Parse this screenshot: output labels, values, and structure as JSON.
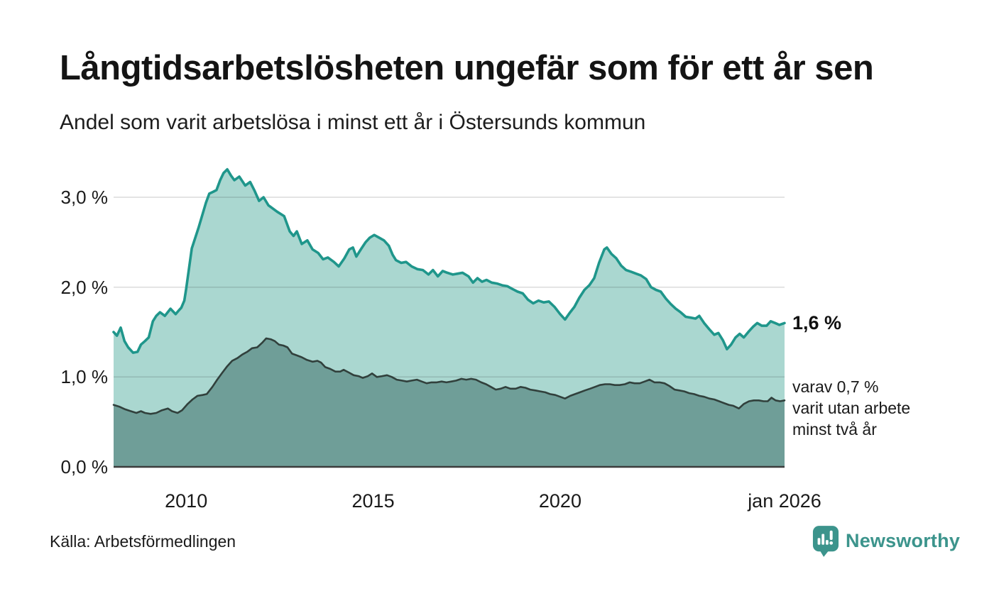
{
  "header": {
    "title": "Långtidsarbetslösheten ungefär som för ett år sen",
    "subtitle": "Andel som varit arbetslösa i minst ett år i Östersunds kommun"
  },
  "chart_data": {
    "type": "area",
    "title": "Långtidsarbetslösheten ungefär som för ett år sen",
    "subtitle": "Andel som varit arbetslösa i minst ett år i Östersunds kommun",
    "x_domain": [
      2008.06,
      2026.0
    ],
    "ylim": [
      0,
      3.5
    ],
    "grid": true,
    "legend_position": "none",
    "colors": {
      "line_total": "#1F968B",
      "fill_total": "#AAD7D0",
      "line_two_years": "#31403C",
      "fill_two_years": "#6F9E98",
      "gridline": "rgba(30,30,30,0.16)",
      "baseline": "#3C3C3C",
      "brand_teal": "#3C948C"
    },
    "y_axis": {
      "ticks": [
        {
          "label": "0,0 %",
          "value": 0
        },
        {
          "label": "1,0 %",
          "value": 1
        },
        {
          "label": "2,0 %",
          "value": 2
        },
        {
          "label": "3,0 %",
          "value": 3
        }
      ]
    },
    "x_axis": {
      "ticks": [
        {
          "label": "2010",
          "value": 2010
        },
        {
          "label": "2015",
          "value": 2015
        },
        {
          "label": "2020",
          "value": 2020
        },
        {
          "label": "jan 2026",
          "value": 2026
        }
      ]
    },
    "series": [
      {
        "name": "Andel arbetslösa minst ett år",
        "line_color": "#1F968B",
        "fill_color": "#AAD7D0",
        "latest_value": 1.6,
        "points": [
          [
            2008.06,
            1.5
          ],
          [
            2008.15,
            1.46
          ],
          [
            2008.25,
            1.55
          ],
          [
            2008.35,
            1.4
          ],
          [
            2008.45,
            1.33
          ],
          [
            2008.58,
            1.27
          ],
          [
            2008.7,
            1.28
          ],
          [
            2008.79,
            1.36
          ],
          [
            2008.9,
            1.4
          ],
          [
            2009.0,
            1.44
          ],
          [
            2009.11,
            1.62
          ],
          [
            2009.2,
            1.68
          ],
          [
            2009.3,
            1.72
          ],
          [
            2009.43,
            1.68
          ],
          [
            2009.58,
            1.76
          ],
          [
            2009.72,
            1.7
          ],
          [
            2009.8,
            1.74
          ],
          [
            2009.87,
            1.77
          ],
          [
            2009.95,
            1.85
          ],
          [
            2010.0,
            1.98
          ],
          [
            2010.15,
            2.43
          ],
          [
            2010.33,
            2.66
          ],
          [
            2010.53,
            2.94
          ],
          [
            2010.62,
            3.04
          ],
          [
            2010.72,
            3.06
          ],
          [
            2010.81,
            3.08
          ],
          [
            2010.91,
            3.19
          ],
          [
            2011.0,
            3.27
          ],
          [
            2011.1,
            3.31
          ],
          [
            2011.2,
            3.24
          ],
          [
            2011.29,
            3.19
          ],
          [
            2011.42,
            3.23
          ],
          [
            2011.58,
            3.13
          ],
          [
            2011.71,
            3.17
          ],
          [
            2011.82,
            3.08
          ],
          [
            2011.95,
            2.96
          ],
          [
            2012.07,
            3.0
          ],
          [
            2012.2,
            2.91
          ],
          [
            2012.43,
            2.84
          ],
          [
            2012.62,
            2.79
          ],
          [
            2012.77,
            2.62
          ],
          [
            2012.87,
            2.57
          ],
          [
            2012.96,
            2.62
          ],
          [
            2013.09,
            2.48
          ],
          [
            2013.24,
            2.52
          ],
          [
            2013.38,
            2.42
          ],
          [
            2013.53,
            2.38
          ],
          [
            2013.66,
            2.31
          ],
          [
            2013.79,
            2.33
          ],
          [
            2013.95,
            2.28
          ],
          [
            2014.08,
            2.23
          ],
          [
            2014.23,
            2.32
          ],
          [
            2014.36,
            2.42
          ],
          [
            2014.46,
            2.44
          ],
          [
            2014.55,
            2.34
          ],
          [
            2014.67,
            2.42
          ],
          [
            2014.8,
            2.5
          ],
          [
            2014.91,
            2.55
          ],
          [
            2015.03,
            2.58
          ],
          [
            2015.16,
            2.55
          ],
          [
            2015.29,
            2.52
          ],
          [
            2015.42,
            2.46
          ],
          [
            2015.52,
            2.36
          ],
          [
            2015.61,
            2.3
          ],
          [
            2015.75,
            2.27
          ],
          [
            2015.88,
            2.28
          ],
          [
            2016.03,
            2.23
          ],
          [
            2016.18,
            2.2
          ],
          [
            2016.33,
            2.19
          ],
          [
            2016.48,
            2.14
          ],
          [
            2016.6,
            2.19
          ],
          [
            2016.73,
            2.12
          ],
          [
            2016.86,
            2.18
          ],
          [
            2016.98,
            2.16
          ],
          [
            2017.13,
            2.14
          ],
          [
            2017.26,
            2.15
          ],
          [
            2017.39,
            2.16
          ],
          [
            2017.55,
            2.12
          ],
          [
            2017.67,
            2.05
          ],
          [
            2017.79,
            2.1
          ],
          [
            2017.91,
            2.06
          ],
          [
            2018.03,
            2.08
          ],
          [
            2018.17,
            2.05
          ],
          [
            2018.31,
            2.04
          ],
          [
            2018.45,
            2.02
          ],
          [
            2018.59,
            2.01
          ],
          [
            2018.72,
            1.98
          ],
          [
            2018.86,
            1.95
          ],
          [
            2019.0,
            1.93
          ],
          [
            2019.14,
            1.86
          ],
          [
            2019.28,
            1.82
          ],
          [
            2019.42,
            1.85
          ],
          [
            2019.56,
            1.83
          ],
          [
            2019.7,
            1.84
          ],
          [
            2019.85,
            1.78
          ],
          [
            2020.0,
            1.7
          ],
          [
            2020.13,
            1.64
          ],
          [
            2020.25,
            1.71
          ],
          [
            2020.38,
            1.78
          ],
          [
            2020.51,
            1.88
          ],
          [
            2020.65,
            1.97
          ],
          [
            2020.78,
            2.02
          ],
          [
            2020.91,
            2.1
          ],
          [
            2021.04,
            2.27
          ],
          [
            2021.18,
            2.42
          ],
          [
            2021.25,
            2.44
          ],
          [
            2021.37,
            2.37
          ],
          [
            2021.5,
            2.32
          ],
          [
            2021.63,
            2.24
          ],
          [
            2021.76,
            2.19
          ],
          [
            2021.9,
            2.17
          ],
          [
            2022.03,
            2.15
          ],
          [
            2022.16,
            2.13
          ],
          [
            2022.3,
            2.09
          ],
          [
            2022.43,
            2.0
          ],
          [
            2022.56,
            1.97
          ],
          [
            2022.69,
            1.95
          ],
          [
            2022.83,
            1.87
          ],
          [
            2022.96,
            1.81
          ],
          [
            2023.09,
            1.76
          ],
          [
            2023.22,
            1.72
          ],
          [
            2023.36,
            1.67
          ],
          [
            2023.49,
            1.66
          ],
          [
            2023.62,
            1.65
          ],
          [
            2023.72,
            1.68
          ],
          [
            2023.85,
            1.6
          ],
          [
            2023.99,
            1.53
          ],
          [
            2024.12,
            1.47
          ],
          [
            2024.23,
            1.49
          ],
          [
            2024.35,
            1.41
          ],
          [
            2024.46,
            1.31
          ],
          [
            2024.57,
            1.36
          ],
          [
            2024.69,
            1.44
          ],
          [
            2024.8,
            1.48
          ],
          [
            2024.91,
            1.44
          ],
          [
            2025.05,
            1.51
          ],
          [
            2025.16,
            1.56
          ],
          [
            2025.27,
            1.6
          ],
          [
            2025.39,
            1.57
          ],
          [
            2025.52,
            1.57
          ],
          [
            2025.63,
            1.62
          ],
          [
            2025.75,
            1.6
          ],
          [
            2025.86,
            1.58
          ],
          [
            2026.0,
            1.6
          ]
        ]
      },
      {
        "name": "Andel arbetslösa minst två år",
        "line_color": "#31403C",
        "fill_color": "#6F9E98",
        "latest_value": 0.7,
        "points": [
          [
            2008.06,
            0.69
          ],
          [
            2008.21,
            0.67
          ],
          [
            2008.37,
            0.64
          ],
          [
            2008.52,
            0.62
          ],
          [
            2008.67,
            0.6
          ],
          [
            2008.79,
            0.62
          ],
          [
            2008.9,
            0.6
          ],
          [
            2009.05,
            0.59
          ],
          [
            2009.2,
            0.6
          ],
          [
            2009.35,
            0.63
          ],
          [
            2009.51,
            0.65
          ],
          [
            2009.62,
            0.62
          ],
          [
            2009.77,
            0.6
          ],
          [
            2009.89,
            0.63
          ],
          [
            2010.04,
            0.7
          ],
          [
            2010.17,
            0.75
          ],
          [
            2010.3,
            0.79
          ],
          [
            2010.44,
            0.8
          ],
          [
            2010.55,
            0.81
          ],
          [
            2010.7,
            0.89
          ],
          [
            2010.83,
            0.97
          ],
          [
            2010.97,
            1.05
          ],
          [
            2011.1,
            1.12
          ],
          [
            2011.23,
            1.18
          ],
          [
            2011.37,
            1.21
          ],
          [
            2011.5,
            1.25
          ],
          [
            2011.63,
            1.28
          ],
          [
            2011.76,
            1.32
          ],
          [
            2011.9,
            1.33
          ],
          [
            2012.03,
            1.38
          ],
          [
            2012.14,
            1.43
          ],
          [
            2012.26,
            1.42
          ],
          [
            2012.37,
            1.4
          ],
          [
            2012.48,
            1.36
          ],
          [
            2012.6,
            1.35
          ],
          [
            2012.71,
            1.33
          ],
          [
            2012.83,
            1.26
          ],
          [
            2012.96,
            1.24
          ],
          [
            2013.09,
            1.22
          ],
          [
            2013.23,
            1.19
          ],
          [
            2013.38,
            1.17
          ],
          [
            2013.51,
            1.18
          ],
          [
            2013.61,
            1.16
          ],
          [
            2013.72,
            1.11
          ],
          [
            2013.85,
            1.09
          ],
          [
            2013.99,
            1.06
          ],
          [
            2014.12,
            1.06
          ],
          [
            2014.21,
            1.08
          ],
          [
            2014.35,
            1.05
          ],
          [
            2014.48,
            1.02
          ],
          [
            2014.61,
            1.01
          ],
          [
            2014.72,
            0.99
          ],
          [
            2014.86,
            1.01
          ],
          [
            2014.97,
            1.04
          ],
          [
            2015.1,
            1.0
          ],
          [
            2015.24,
            1.01
          ],
          [
            2015.37,
            1.02
          ],
          [
            2015.5,
            1.0
          ],
          [
            2015.63,
            0.97
          ],
          [
            2015.77,
            0.96
          ],
          [
            2015.9,
            0.95
          ],
          [
            2016.03,
            0.96
          ],
          [
            2016.17,
            0.97
          ],
          [
            2016.3,
            0.95
          ],
          [
            2016.43,
            0.93
          ],
          [
            2016.56,
            0.94
          ],
          [
            2016.7,
            0.94
          ],
          [
            2016.83,
            0.95
          ],
          [
            2016.96,
            0.94
          ],
          [
            2017.09,
            0.95
          ],
          [
            2017.22,
            0.96
          ],
          [
            2017.36,
            0.98
          ],
          [
            2017.49,
            0.97
          ],
          [
            2017.62,
            0.98
          ],
          [
            2017.75,
            0.97
          ],
          [
            2017.89,
            0.94
          ],
          [
            2018.02,
            0.92
          ],
          [
            2018.15,
            0.89
          ],
          [
            2018.28,
            0.86
          ],
          [
            2018.41,
            0.87
          ],
          [
            2018.54,
            0.89
          ],
          [
            2018.67,
            0.87
          ],
          [
            2018.81,
            0.87
          ],
          [
            2018.94,
            0.89
          ],
          [
            2019.07,
            0.88
          ],
          [
            2019.2,
            0.86
          ],
          [
            2019.34,
            0.85
          ],
          [
            2019.47,
            0.84
          ],
          [
            2019.6,
            0.83
          ],
          [
            2019.73,
            0.81
          ],
          [
            2019.87,
            0.8
          ],
          [
            2020.0,
            0.78
          ],
          [
            2020.13,
            0.76
          ],
          [
            2020.27,
            0.79
          ],
          [
            2020.4,
            0.81
          ],
          [
            2020.53,
            0.83
          ],
          [
            2020.66,
            0.85
          ],
          [
            2020.8,
            0.87
          ],
          [
            2020.93,
            0.89
          ],
          [
            2021.06,
            0.91
          ],
          [
            2021.2,
            0.92
          ],
          [
            2021.33,
            0.92
          ],
          [
            2021.46,
            0.91
          ],
          [
            2021.59,
            0.91
          ],
          [
            2021.73,
            0.92
          ],
          [
            2021.86,
            0.94
          ],
          [
            2021.99,
            0.93
          ],
          [
            2022.13,
            0.93
          ],
          [
            2022.26,
            0.95
          ],
          [
            2022.39,
            0.97
          ],
          [
            2022.52,
            0.94
          ],
          [
            2022.66,
            0.94
          ],
          [
            2022.79,
            0.93
          ],
          [
            2022.92,
            0.9
          ],
          [
            2023.06,
            0.86
          ],
          [
            2023.19,
            0.85
          ],
          [
            2023.32,
            0.84
          ],
          [
            2023.45,
            0.82
          ],
          [
            2023.58,
            0.81
          ],
          [
            2023.72,
            0.79
          ],
          [
            2023.85,
            0.78
          ],
          [
            2023.99,
            0.76
          ],
          [
            2024.12,
            0.75
          ],
          [
            2024.25,
            0.73
          ],
          [
            2024.38,
            0.71
          ],
          [
            2024.51,
            0.69
          ],
          [
            2024.63,
            0.68
          ],
          [
            2024.78,
            0.65
          ],
          [
            2024.91,
            0.7
          ],
          [
            2025.05,
            0.73
          ],
          [
            2025.18,
            0.74
          ],
          [
            2025.31,
            0.74
          ],
          [
            2025.44,
            0.73
          ],
          [
            2025.55,
            0.73
          ],
          [
            2025.65,
            0.77
          ],
          [
            2025.76,
            0.74
          ],
          [
            2025.88,
            0.73
          ],
          [
            2026.0,
            0.74
          ]
        ]
      }
    ],
    "annotations": {
      "total_label": "1,6 %",
      "sub_line1": "varav 0,7 %",
      "sub_line2": "varit utan arbete",
      "sub_line3": "minst två år"
    }
  },
  "footer": {
    "source": "Källa: Arbetsförmedlingen",
    "brand": "Newsworthy"
  }
}
